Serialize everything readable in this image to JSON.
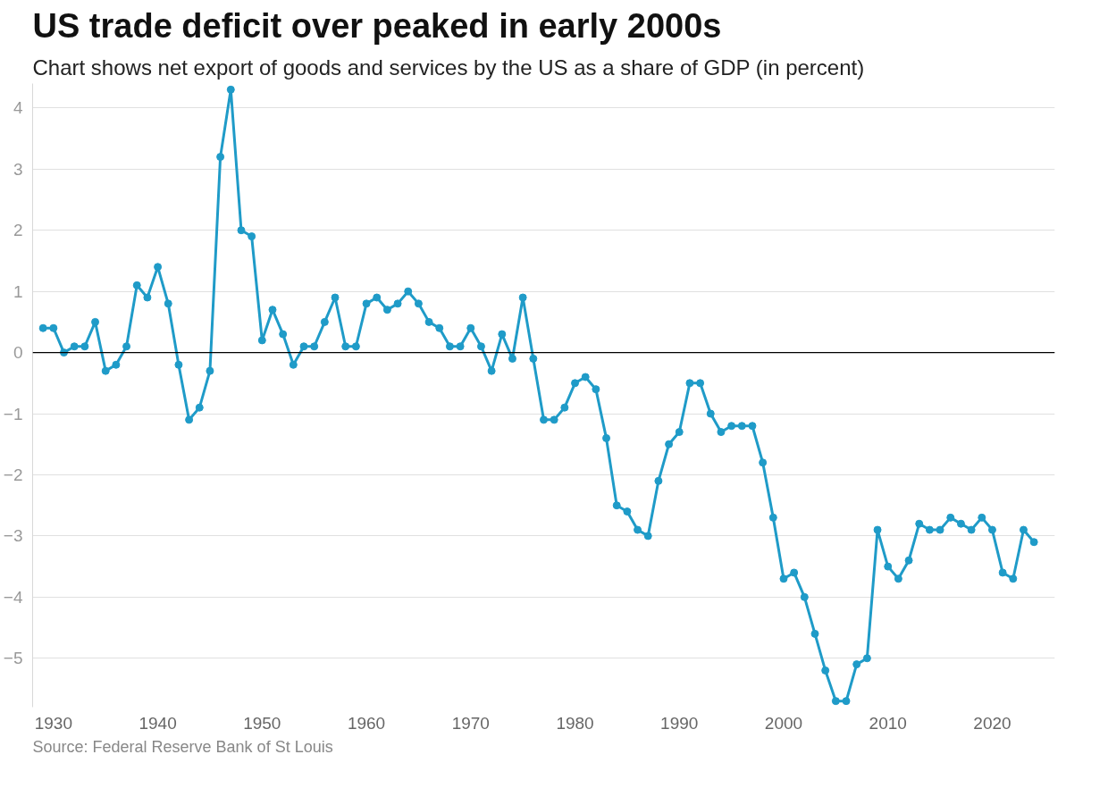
{
  "chart_data": {
    "type": "line",
    "title": "US trade deficit over peaked in early 2000s",
    "subtitle": "Chart shows net export of goods and services by the US as a share of GDP (in percent)",
    "annotations": [
      "Source: Federal Reserve Bank of St Louis"
    ],
    "x": [
      1929,
      1930,
      1931,
      1932,
      1933,
      1934,
      1935,
      1936,
      1937,
      1938,
      1939,
      1940,
      1941,
      1942,
      1943,
      1944,
      1945,
      1946,
      1947,
      1948,
      1949,
      1950,
      1951,
      1952,
      1953,
      1954,
      1955,
      1956,
      1957,
      1958,
      1959,
      1960,
      1961,
      1962,
      1963,
      1964,
      1965,
      1966,
      1967,
      1968,
      1969,
      1970,
      1971,
      1972,
      1973,
      1974,
      1975,
      1976,
      1977,
      1978,
      1979,
      1980,
      1981,
      1982,
      1983,
      1984,
      1985,
      1986,
      1987,
      1988,
      1989,
      1990,
      1991,
      1992,
      1993,
      1994,
      1995,
      1996,
      1997,
      1998,
      1999,
      2000,
      2001,
      2002,
      2003,
      2004,
      2005,
      2006,
      2007,
      2008,
      2009,
      2010,
      2011,
      2012,
      2013,
      2014,
      2015,
      2016,
      2017,
      2018,
      2019,
      2020,
      2021,
      2022,
      2023,
      2024
    ],
    "series": [
      {
        "color": "#1f9bc8",
        "values": [
          0.4,
          0.4,
          0.0,
          0.1,
          0.1,
          0.5,
          -0.3,
          -0.2,
          0.1,
          1.1,
          0.9,
          1.4,
          0.8,
          -0.2,
          -1.1,
          -0.9,
          -0.3,
          3.2,
          4.3,
          2.0,
          1.9,
          0.2,
          0.7,
          0.3,
          -0.2,
          0.1,
          0.1,
          0.5,
          0.9,
          0.1,
          0.1,
          0.8,
          0.9,
          0.7,
          0.8,
          1.0,
          0.8,
          0.5,
          0.4,
          0.1,
          0.1,
          0.4,
          0.1,
          -0.3,
          0.3,
          -0.1,
          0.9,
          -0.1,
          -1.1,
          -1.1,
          -0.9,
          -0.5,
          -0.4,
          -0.6,
          -1.4,
          -2.5,
          -2.6,
          -2.9,
          -3.0,
          -2.1,
          -1.5,
          -1.3,
          -0.5,
          -0.5,
          -1.0,
          -1.3,
          -1.2,
          -1.2,
          -1.2,
          -1.8,
          -2.7,
          -3.7,
          -3.6,
          -4.0,
          -4.6,
          -5.2,
          -5.7,
          -5.7,
          -5.1,
          -5.0,
          -2.9,
          -3.5,
          -3.7,
          -3.4,
          -2.8,
          -2.9,
          -2.9,
          -2.7,
          -2.8,
          -2.9,
          -2.7,
          -2.9,
          -3.6,
          -3.7,
          -2.9,
          -3.1
        ]
      }
    ],
    "xlim": [
      1928,
      2026
    ],
    "xticks": [
      1930,
      1940,
      1950,
      1960,
      1970,
      1980,
      1990,
      2000,
      2010,
      2020
    ],
    "ylim": [
      -5.8,
      4.4
    ],
    "yticks": [
      -5,
      -4,
      -3,
      -2,
      -1,
      0,
      1,
      2,
      3,
      4
    ],
    "ref_lines": [
      {
        "axis": "y",
        "value": 0,
        "color": "#000000"
      }
    ],
    "grid": "y",
    "marker": "circle",
    "line_style": "solid"
  }
}
